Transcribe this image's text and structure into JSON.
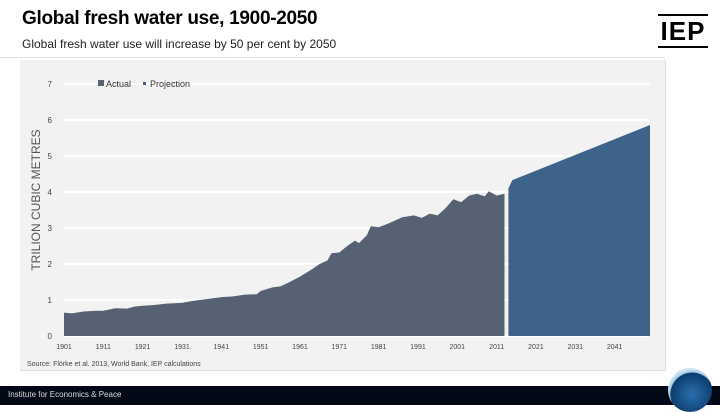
{
  "title": "Global fresh water use, 1900-2050",
  "subtitle": "Global fresh water use will increase by 50 per cent by 2050",
  "logo": "IEP",
  "source": "Source: Flörke et al. 2013, World Bank, IEP calculations",
  "footer": "Institute for Economics & Peace",
  "colors": {
    "actual": "#566273",
    "projection": "#3d6388",
    "panel": "#f2f2f2",
    "grid": "#ffffff"
  },
  "chart_data": {
    "type": "area",
    "title": "Global fresh water use, 1900-2050",
    "ylabel": "TRILION CUBIC METRES",
    "xlabel": "",
    "ylim": [
      0,
      7
    ],
    "xlim": [
      1901,
      2050
    ],
    "yticks": [
      0,
      1,
      2,
      3,
      4,
      5,
      6,
      7
    ],
    "xticks": [
      "1901",
      "1911",
      "1921",
      "1931",
      "1941",
      "1951",
      "1961",
      "1971",
      "1981",
      "1991",
      "2001",
      "2011",
      "2021",
      "2031",
      "2041"
    ],
    "grid": true,
    "legend": "top-left",
    "series": [
      {
        "name": "Actual",
        "x": [
          1901,
          1903,
          1906,
          1909,
          1911,
          1914,
          1917,
          1919,
          1921,
          1924,
          1927,
          1931,
          1934,
          1937,
          1941,
          1944,
          1947,
          1950,
          1951,
          1954,
          1956,
          1958,
          1961,
          1964,
          1966,
          1968,
          1969,
          1971,
          1973,
          1975,
          1976,
          1978,
          1979,
          1981,
          1984,
          1987,
          1990,
          1992,
          1994,
          1996,
          1998,
          2000,
          2002,
          2004,
          2006,
          2008,
          2009,
          2011,
          2013
        ],
        "y": [
          0.65,
          0.63,
          0.68,
          0.7,
          0.7,
          0.77,
          0.76,
          0.82,
          0.84,
          0.86,
          0.9,
          0.92,
          0.98,
          1.02,
          1.08,
          1.1,
          1.15,
          1.16,
          1.25,
          1.35,
          1.38,
          1.48,
          1.65,
          1.85,
          2.0,
          2.1,
          2.3,
          2.32,
          2.5,
          2.65,
          2.58,
          2.8,
          3.05,
          3.02,
          3.15,
          3.3,
          3.35,
          3.28,
          3.4,
          3.35,
          3.55,
          3.8,
          3.72,
          3.9,
          3.95,
          3.88,
          4.02,
          3.9,
          3.95
        ]
      },
      {
        "name": "Projection",
        "x": [
          2014,
          2015,
          2050
        ],
        "y": [
          4.1,
          4.33,
          5.86
        ]
      }
    ]
  }
}
